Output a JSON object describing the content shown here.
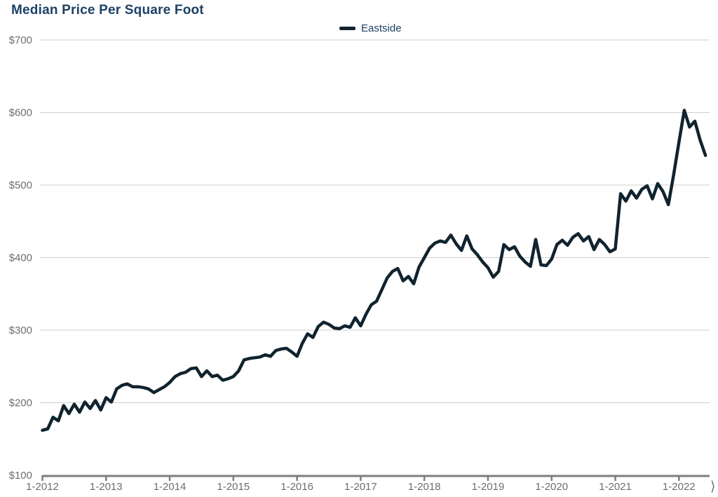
{
  "page": {
    "title": "Median Price Per Square Foot"
  },
  "legend": {
    "series_label": "Eastside"
  },
  "misc": {
    "clipped_glyph": "⟩"
  },
  "colors": {
    "line": "#10232f",
    "title_text": "#1e4266",
    "legend_text": "#1d3f63",
    "axis_text": "#6e6e6e",
    "gridline": "#cfcfcf",
    "axis_line": "#7d7d7d"
  },
  "chart_data": {
    "type": "line",
    "title": "Median Price Per Square Foot",
    "legend_entries": [
      "Eastside"
    ],
    "legend_position": "top-center",
    "grid": "horizontal-only",
    "xlabel": "",
    "ylabel": "",
    "ylim": [
      100,
      700
    ],
    "x_start": "1-2012",
    "x_end": "6-2022",
    "x_interval": "monthly",
    "y_ticks": [
      {
        "label": "$100",
        "value": 100
      },
      {
        "label": "$200",
        "value": 200
      },
      {
        "label": "$300",
        "value": 300
      },
      {
        "label": "$400",
        "value": 400
      },
      {
        "label": "$500",
        "value": 500
      },
      {
        "label": "$600",
        "value": 600
      },
      {
        "label": "$700",
        "value": 700
      }
    ],
    "x_ticks": [
      {
        "label": "1-2012",
        "month_index": 0
      },
      {
        "label": "1-2013",
        "month_index": 12
      },
      {
        "label": "1-2014",
        "month_index": 24
      },
      {
        "label": "1-2015",
        "month_index": 36
      },
      {
        "label": "1-2016",
        "month_index": 48
      },
      {
        "label": "1-2017",
        "month_index": 60
      },
      {
        "label": "1-2018",
        "month_index": 72
      },
      {
        "label": "1-2019",
        "month_index": 84
      },
      {
        "label": "1-2020",
        "month_index": 96
      },
      {
        "label": "1-2021",
        "month_index": 108
      },
      {
        "label": "1-2022",
        "month_index": 120
      }
    ],
    "series": [
      {
        "name": "Eastside",
        "start_month": "2012-01",
        "values": [
          162,
          164,
          180,
          175,
          196,
          185,
          198,
          187,
          201,
          192,
          203,
          190,
          207,
          201,
          219,
          224,
          226,
          222,
          222,
          221,
          219,
          214,
          218,
          222,
          228,
          236,
          240,
          242,
          247,
          248,
          236,
          244,
          236,
          238,
          231,
          233,
          236,
          244,
          259,
          261,
          262,
          263,
          266,
          264,
          272,
          274,
          275,
          270,
          264,
          282,
          295,
          290,
          305,
          311,
          308,
          303,
          302,
          306,
          304,
          317,
          306,
          322,
          335,
          340,
          356,
          372,
          381,
          385,
          368,
          374,
          364,
          387,
          400,
          413,
          420,
          423,
          421,
          431,
          419,
          410,
          430,
          412,
          404,
          394,
          386,
          373,
          381,
          418,
          411,
          415,
          402,
          394,
          388,
          425,
          390,
          389,
          398,
          418,
          424,
          417,
          428,
          433,
          423,
          429,
          411,
          425,
          418,
          408,
          412,
          488,
          478,
          492,
          482,
          494,
          499,
          481,
          502,
          491,
          473,
          514,
          559,
          603,
          580,
          588,
          562,
          541
        ]
      }
    ]
  }
}
